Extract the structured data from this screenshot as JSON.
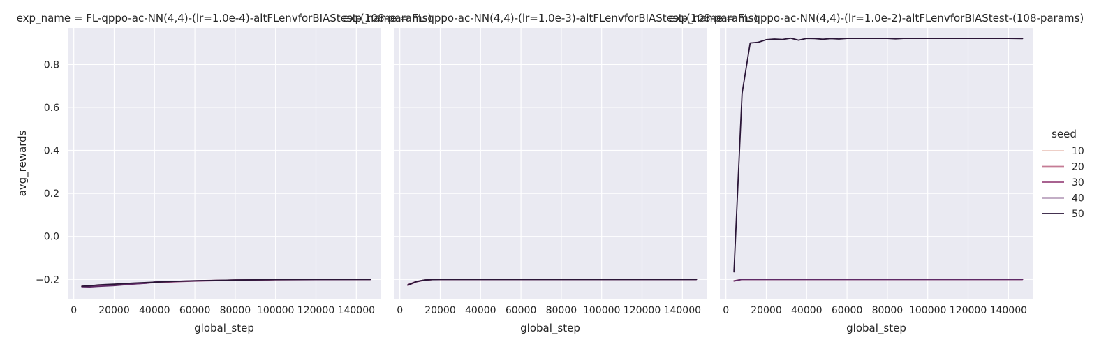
{
  "chart_data": {
    "type": "line",
    "xlabel": "global_step",
    "ylabel": "avg_rewards",
    "xlim": [
      -3000,
      152000
    ],
    "ylim": [
      -0.29,
      0.97
    ],
    "xticks": [
      0,
      20000,
      40000,
      60000,
      80000,
      100000,
      120000,
      140000
    ],
    "yticks": [
      -0.2,
      0.0,
      0.2,
      0.4,
      0.6,
      0.8
    ],
    "xtick_labels": [
      "0",
      "20000",
      "40000",
      "60000",
      "80000",
      "100000",
      "120000",
      "140000"
    ],
    "ytick_labels": [
      "−0.2",
      "0.0",
      "0.2",
      "0.4",
      "0.6",
      "0.8"
    ],
    "grid": true,
    "legend": {
      "title": "seed",
      "placement": "right",
      "entries": [
        {
          "label": "10",
          "color": "#ebc8bf"
        },
        {
          "label": "20",
          "color": "#c57b95"
        },
        {
          "label": "30",
          "color": "#9c4c80"
        },
        {
          "label": "40",
          "color": "#5f2966"
        },
        {
          "label": "50",
          "color": "#2a1537"
        }
      ]
    },
    "panels": [
      {
        "title": "exp_name = FL-qppo-ac-NN(4,4)-(lr=1.0e-4)-altFLenvforBIAStest-(108-params)",
        "series": [
          {
            "seed": "10",
            "x": [
              4000,
              12000,
              20000,
              30000,
              40000,
              60000,
              80000,
              100000,
              120000,
              147000
            ],
            "y": [
              -0.232,
              -0.228,
              -0.224,
              -0.219,
              -0.214,
              -0.207,
              -0.203,
              -0.201,
              -0.2,
              -0.2
            ]
          },
          {
            "seed": "20",
            "x": [
              4000,
              12000,
              20000,
              30000,
              40000,
              60000,
              80000,
              100000,
              120000,
              147000
            ],
            "y": [
              -0.233,
              -0.229,
              -0.225,
              -0.22,
              -0.214,
              -0.207,
              -0.203,
              -0.201,
              -0.2,
              -0.2
            ]
          },
          {
            "seed": "30",
            "x": [
              4000,
              12000,
              20000,
              30000,
              40000,
              60000,
              80000,
              100000,
              120000,
              147000
            ],
            "y": [
              -0.232,
              -0.23,
              -0.226,
              -0.221,
              -0.215,
              -0.208,
              -0.204,
              -0.202,
              -0.201,
              -0.2
            ]
          },
          {
            "seed": "40",
            "x": [
              4000,
              8000,
              12000,
              20000,
              30000,
              36000,
              40000,
              50000,
              60000,
              80000,
              100000,
              120000,
              147000
            ],
            "y": [
              -0.234,
              -0.235,
              -0.233,
              -0.229,
              -0.221,
              -0.218,
              -0.212,
              -0.209,
              -0.206,
              -0.203,
              -0.201,
              -0.2,
              -0.2
            ]
          },
          {
            "seed": "50",
            "x": [
              4000,
              8000,
              12000,
              16000,
              20000,
              30000,
              40000,
              50000,
              60000,
              70000,
              80000,
              100000,
              120000,
              147000
            ],
            "y": [
              -0.232,
              -0.23,
              -0.226,
              -0.224,
              -0.222,
              -0.217,
              -0.213,
              -0.209,
              -0.207,
              -0.205,
              -0.203,
              -0.201,
              -0.2,
              -0.2
            ]
          }
        ]
      },
      {
        "title": "exp_name = FL-qppo-ac-NN(4,4)-(lr=1.0e-3)-altFLenvforBIAStest-(108-params)",
        "series": [
          {
            "seed": "10",
            "x": [
              4000,
              8000,
              12000,
              16000,
              20000,
              30000,
              60000,
              100000,
              147000
            ],
            "y": [
              -0.224,
              -0.21,
              -0.203,
              -0.201,
              -0.2,
              -0.2,
              -0.2,
              -0.2,
              -0.2
            ]
          },
          {
            "seed": "20",
            "x": [
              4000,
              8000,
              12000,
              16000,
              20000,
              30000,
              60000,
              100000,
              147000
            ],
            "y": [
              -0.226,
              -0.211,
              -0.204,
              -0.201,
              -0.2,
              -0.2,
              -0.2,
              -0.2,
              -0.2
            ]
          },
          {
            "seed": "30",
            "x": [
              4000,
              8000,
              12000,
              16000,
              20000,
              30000,
              60000,
              100000,
              147000
            ],
            "y": [
              -0.228,
              -0.212,
              -0.204,
              -0.201,
              -0.2,
              -0.2,
              -0.2,
              -0.2,
              -0.2
            ]
          },
          {
            "seed": "40",
            "x": [
              4000,
              8000,
              12000,
              16000,
              20000,
              30000,
              60000,
              100000,
              147000
            ],
            "y": [
              -0.225,
              -0.21,
              -0.203,
              -0.201,
              -0.2,
              -0.2,
              -0.2,
              -0.2,
              -0.2
            ]
          },
          {
            "seed": "50",
            "x": [
              4000,
              8000,
              12000,
              16000,
              20000,
              30000,
              60000,
              100000,
              147000
            ],
            "y": [
              -0.227,
              -0.211,
              -0.203,
              -0.201,
              -0.2,
              -0.2,
              -0.2,
              -0.2,
              -0.2
            ]
          }
        ]
      },
      {
        "title": "exp_name = FL-qppo-ac-NN(4,4)-(lr=1.0e-2)-altFLenvforBIAStest-(108-params)",
        "series": [
          {
            "seed": "10",
            "x": [
              4000,
              8000,
              12000,
              20000,
              60000,
              100000,
              147000
            ],
            "y": [
              -0.206,
              -0.2,
              -0.2,
              -0.2,
              -0.2,
              -0.2,
              -0.2
            ]
          },
          {
            "seed": "20",
            "x": [
              4000,
              8000,
              12000,
              20000,
              60000,
              100000,
              147000
            ],
            "y": [
              -0.207,
              -0.2,
              -0.2,
              -0.2,
              -0.2,
              -0.2,
              -0.2
            ]
          },
          {
            "seed": "30",
            "x": [
              4000,
              8000,
              12000,
              20000,
              60000,
              100000,
              147000
            ],
            "y": [
              -0.208,
              -0.2,
              -0.2,
              -0.2,
              -0.2,
              -0.2,
              -0.2
            ]
          },
          {
            "seed": "40",
            "x": [
              4000,
              8000,
              12000,
              20000,
              60000,
              100000,
              147000
            ],
            "y": [
              -0.207,
              -0.2,
              -0.2,
              -0.2,
              -0.2,
              -0.2,
              -0.2
            ]
          },
          {
            "seed": "50",
            "x": [
              4000,
              8000,
              12000,
              16000,
              20000,
              24000,
              28000,
              32000,
              36000,
              40000,
              44000,
              48000,
              52000,
              56000,
              60000,
              70000,
              80000,
              84000,
              88000,
              100000,
              120000,
              140000,
              147000
            ],
            "y": [
              -0.165,
              0.665,
              0.9,
              0.903,
              0.915,
              0.918,
              0.916,
              0.922,
              0.913,
              0.921,
              0.92,
              0.917,
              0.92,
              0.918,
              0.921,
              0.921,
              0.921,
              0.919,
              0.921,
              0.921,
              0.921,
              0.921,
              0.92
            ]
          }
        ]
      }
    ]
  }
}
